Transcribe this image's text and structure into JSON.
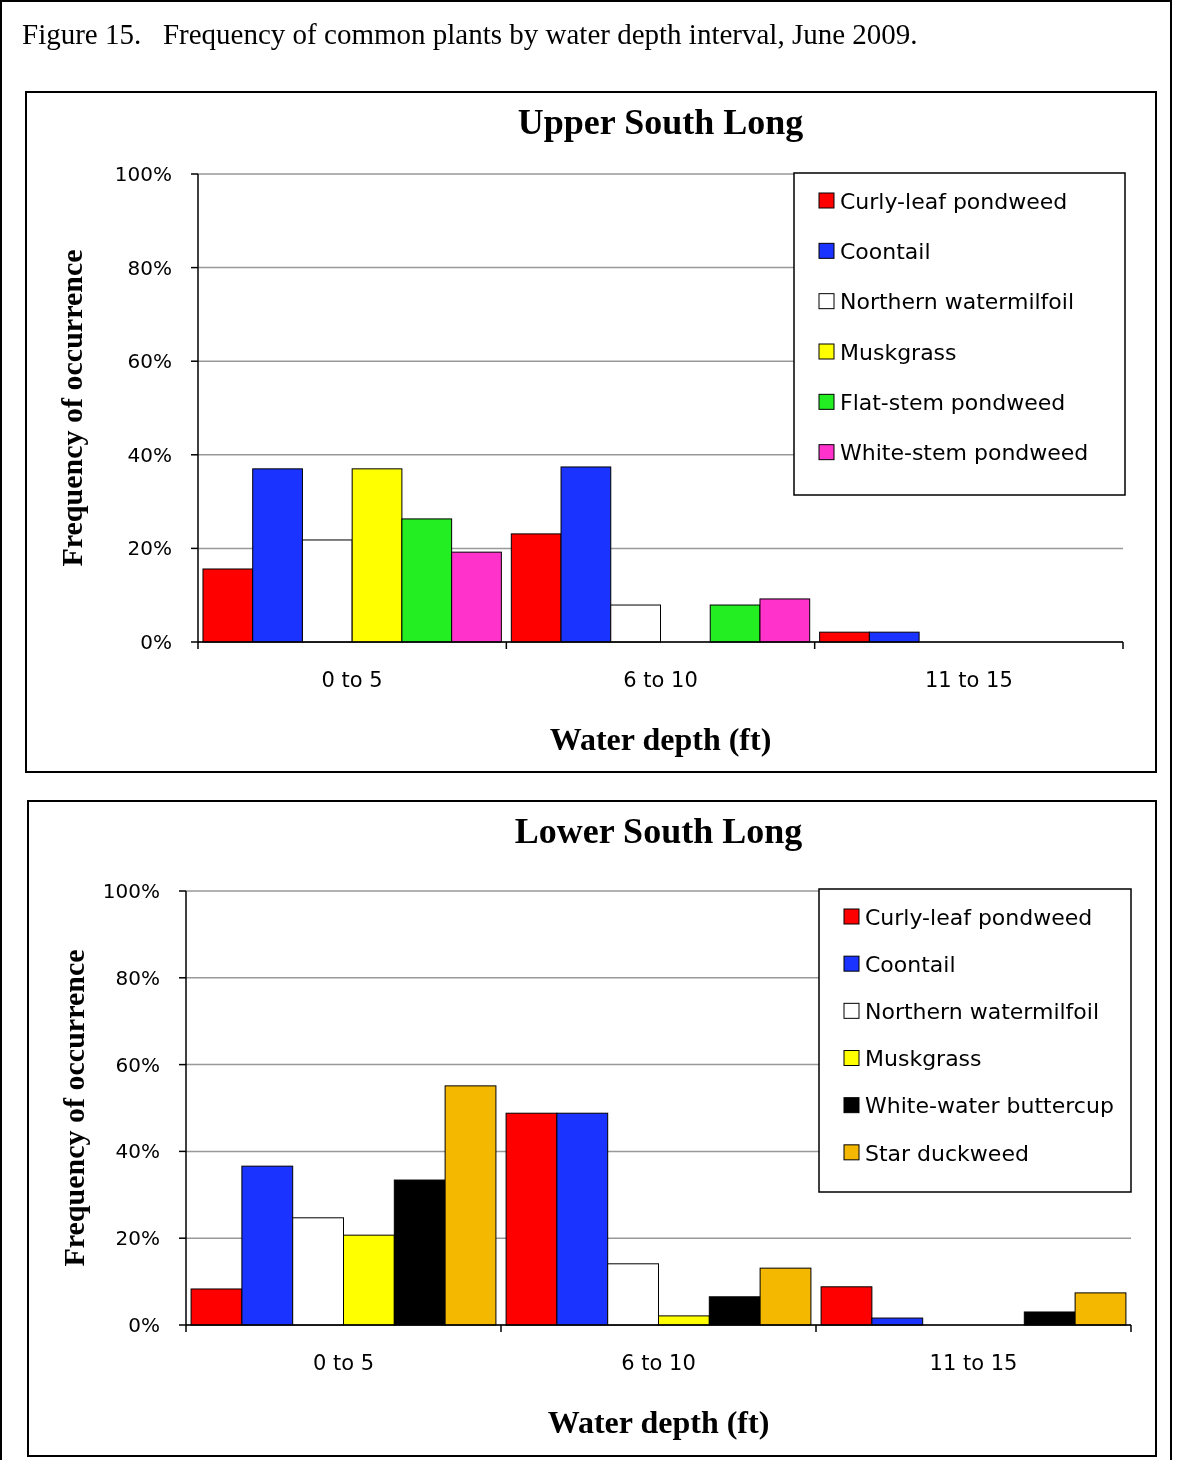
{
  "chart_data": [
    {
      "type": "bar",
      "title": "Upper South Long",
      "xlabel": "Water depth (ft)",
      "ylabel": "Frequency of occurrence",
      "annotations": [
        "Figure 15.   Frequency of common plants by water depth interval, June 2009."
      ],
      "categories": [
        "0 to 5",
        "6 to 10",
        "11 to 15"
      ],
      "ylim": [
        0,
        100
      ],
      "yticks": [
        {
          "value": 0,
          "label": "0%"
        },
        {
          "value": 20,
          "label": "20%"
        },
        {
          "value": 40,
          "label": "40%"
        },
        {
          "value": 60,
          "label": "60%"
        },
        {
          "value": 80,
          "label": "80%"
        },
        {
          "value": 100,
          "label": "100%"
        }
      ],
      "grid": "y",
      "legend": "top right",
      "series": [
        {
          "name": "Curly-leaf pondweed",
          "color": "#ff0000",
          "values": [
            15.6,
            23.1,
            2.1
          ]
        },
        {
          "name": "Coontail",
          "color": "#1a33ff",
          "values": [
            37.0,
            37.4,
            2.1
          ]
        },
        {
          "name": "Northern watermilfoil",
          "color": "#ffffff",
          "values": [
            21.8,
            7.9,
            null
          ]
        },
        {
          "name": "Muskgrass",
          "color": "#ffff00",
          "values": [
            37.0,
            null,
            null
          ]
        },
        {
          "name": "Flat-stem pondweed",
          "color": "#22ee22",
          "values": [
            26.3,
            7.9,
            null
          ]
        },
        {
          "name": "White-stem pondweed",
          "color": "#ff33cc",
          "values": [
            19.2,
            9.2,
            null
          ]
        }
      ]
    },
    {
      "type": "bar",
      "title": "Lower South Long",
      "xlabel": "Water depth (ft)",
      "ylabel": "Frequency of occurrence",
      "categories": [
        "0 to 5",
        "6 to 10",
        "11 to 15"
      ],
      "ylim": [
        0,
        100
      ],
      "yticks": [
        {
          "value": 0,
          "label": "0%"
        },
        {
          "value": 20,
          "label": "20%"
        },
        {
          "value": 40,
          "label": "40%"
        },
        {
          "value": 60,
          "label": "60%"
        },
        {
          "value": 80,
          "label": "80%"
        },
        {
          "value": 100,
          "label": "100%"
        }
      ],
      "grid": "y",
      "legend": "top right",
      "series": [
        {
          "name": "Curly-leaf pondweed",
          "color": "#ff0000",
          "values": [
            8.3,
            48.8,
            8.8
          ]
        },
        {
          "name": "Coontail",
          "color": "#1a33ff",
          "values": [
            36.6,
            48.8,
            1.6
          ]
        },
        {
          "name": "Northern watermilfoil",
          "color": "#ffffff",
          "values": [
            24.7,
            14.1,
            null
          ]
        },
        {
          "name": "Muskgrass",
          "color": "#ffff00",
          "values": [
            20.7,
            2.1,
            null
          ]
        },
        {
          "name": "White-water buttercup",
          "color": "#000000",
          "values": [
            33.4,
            6.5,
            3.0
          ]
        },
        {
          "name": "Star duckweed",
          "color": "#f5b800",
          "values": [
            55.1,
            13.1,
            7.4
          ]
        }
      ]
    }
  ]
}
